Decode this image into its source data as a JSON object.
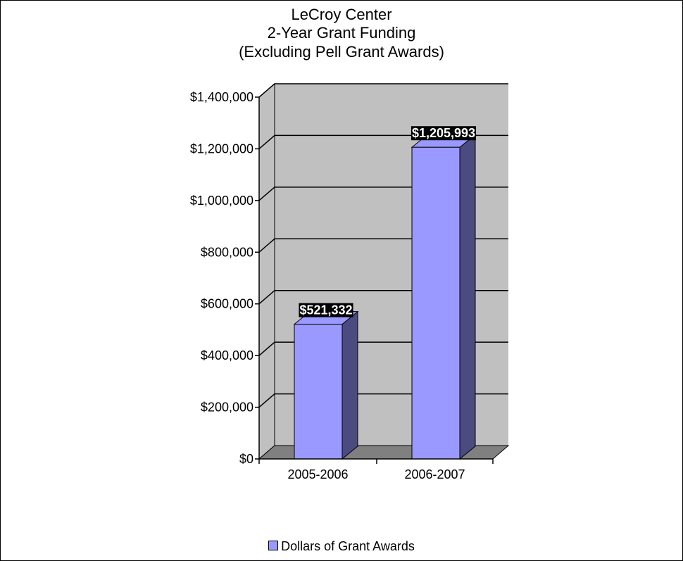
{
  "chart_data": {
    "type": "bar",
    "title_lines": [
      "LeCroy Center",
      "2-Year Grant Funding",
      "(Excluding Pell Grant Awards)"
    ],
    "categories": [
      "2005-2006",
      "2006-2007"
    ],
    "series": [
      {
        "name": "Dollars of Grant Awards",
        "values": [
          521332,
          1205993
        ],
        "data_labels": [
          "$521,332",
          "$1,205,993"
        ]
      }
    ],
    "y_ticks": [
      0,
      200000,
      400000,
      600000,
      800000,
      1000000,
      1200000,
      1400000
    ],
    "y_tick_labels": [
      "$0",
      "$200,000",
      "$400,000",
      "$600,000",
      "$800,000",
      "$1,000,000",
      "$1,200,000",
      "$1,400,000"
    ],
    "ylim": [
      0,
      1400000
    ],
    "grid": true,
    "legend_position": "bottom",
    "style": "3d-column",
    "colors": {
      "bar_front": "#9999FF",
      "bar_side": "#4B4B7F",
      "plot_wall": "#C0C0C0",
      "floor": "#808080",
      "label_bg": "#000000",
      "label_text": "#FFFFFF"
    }
  }
}
